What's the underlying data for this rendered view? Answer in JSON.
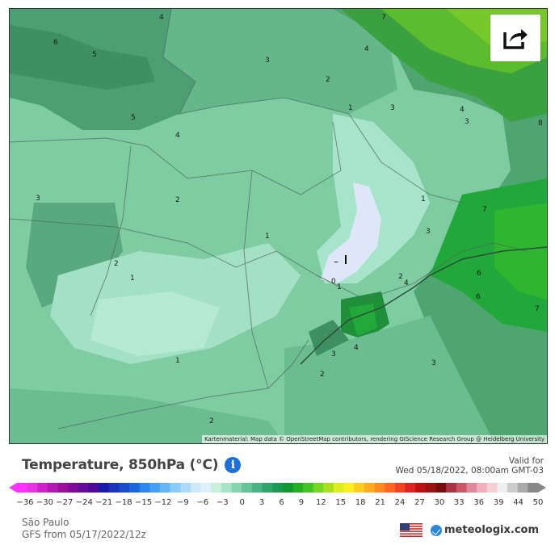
{
  "map": {
    "attribution": "Kartenmaterial: Map data © OpenStreetMap contributors, rendering GIScience Research Group @ Heidelberg University",
    "share_icon": "share-arrow-icon",
    "contour_labels": [
      {
        "text": "4"
      },
      {
        "text": "6"
      },
      {
        "text": "5"
      },
      {
        "text": "3"
      },
      {
        "text": "2"
      },
      {
        "text": "1"
      },
      {
        "text": "4"
      },
      {
        "text": "3"
      },
      {
        "text": "5"
      },
      {
        "text": "4"
      },
      {
        "text": "7"
      },
      {
        "text": "4"
      },
      {
        "text": "3"
      },
      {
        "text": "8"
      },
      {
        "text": "3"
      },
      {
        "text": "2"
      },
      {
        "text": "1"
      },
      {
        "text": "1"
      },
      {
        "text": "2"
      },
      {
        "text": "1"
      },
      {
        "text": "3"
      },
      {
        "text": "7"
      },
      {
        "text": "0"
      },
      {
        "text": "1"
      },
      {
        "text": "2"
      },
      {
        "text": "4"
      },
      {
        "text": "6"
      },
      {
        "text": "6"
      },
      {
        "text": "7"
      },
      {
        "text": "3"
      },
      {
        "text": "4"
      },
      {
        "text": "3"
      },
      {
        "text": "2"
      },
      {
        "text": "1"
      },
      {
        "text": "2"
      },
      {
        "text": "5"
      }
    ]
  },
  "header": {
    "title": "Temperature, 850hPa (°C)",
    "info_icon": "info-icon",
    "valid_for_label": "Valid for",
    "valid_time": "Wed 05/18/2022, 08:00am GMT-03"
  },
  "scale": {
    "labels": [
      "-36",
      "-30",
      "-27",
      "-24",
      "-21",
      "-18",
      "-15",
      "-12",
      "-9",
      "-6",
      "-3",
      "0",
      "3",
      "6",
      "9",
      "12",
      "15",
      "18",
      "21",
      "24",
      "27",
      "30",
      "33",
      "36",
      "39",
      "44",
      "50"
    ],
    "colors": [
      "#ff33ff",
      "#e633e6",
      "#cc22cc",
      "#b31ab3",
      "#991199",
      "#800a99",
      "#660a99",
      "#4d0a99",
      "#1a1aa8",
      "#1a33bb",
      "#1a4dcc",
      "#1a66dd",
      "#2a88ee",
      "#44a0f0",
      "#66b8f4",
      "#88ccf6",
      "#aadaf8",
      "#cce8fa",
      "#e0f0fb",
      "#c8eedc",
      "#a8e4c8",
      "#86d4b0",
      "#66c49a",
      "#4ab484",
      "#2ea66a",
      "#1a9a50",
      "#0f9a30",
      "#22b022",
      "#44c422",
      "#77d622",
      "#aae022",
      "#ddee22",
      "#ffee22",
      "#ffcc22",
      "#ffaa22",
      "#ff8822",
      "#ff6622",
      "#ee4422",
      "#dd2222",
      "#bb1111",
      "#991111",
      "#770a0a",
      "#aa3344",
      "#cc5566",
      "#e08899",
      "#f0b0bb",
      "#f6d0d6",
      "#eeeeee",
      "#cccccc",
      "#aaaaaa",
      "#888888"
    ]
  },
  "footer": {
    "location": "São Paulo",
    "model_run": "GFS from 05/17/2022/12z",
    "flag_icon": "us-flag-icon",
    "brand": "meteologix.com",
    "brand_icon": "meteologix-logo-icon"
  }
}
